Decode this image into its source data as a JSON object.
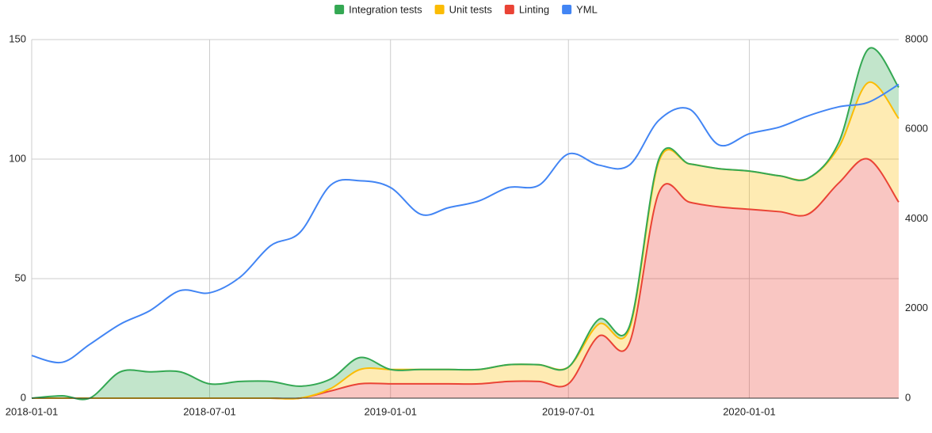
{
  "chart_data": {
    "type": "stacked-area-line",
    "x": [
      "2018-01-01",
      "2018-02-01",
      "2018-03-01",
      "2018-04-01",
      "2018-05-01",
      "2018-06-01",
      "2018-07-01",
      "2018-08-01",
      "2018-09-01",
      "2018-10-01",
      "2018-11-01",
      "2018-12-01",
      "2019-01-01",
      "2019-02-01",
      "2019-03-01",
      "2019-04-01",
      "2019-05-01",
      "2019-06-01",
      "2019-07-01",
      "2019-08-01",
      "2019-09-01",
      "2019-10-01",
      "2019-11-01",
      "2019-12-01",
      "2020-01-01",
      "2020-02-01",
      "2020-03-01",
      "2020-04-01",
      "2020-05-01",
      "2020-06-01"
    ],
    "xlim": [
      "2018-01-01",
      "2020-06-01"
    ],
    "xticks": [
      "2018-01-01",
      "2018-07-01",
      "2019-01-01",
      "2019-07-01",
      "2020-01-01"
    ],
    "ylim": [
      0,
      150
    ],
    "yticks": [
      0,
      50,
      100,
      150
    ],
    "y2lim": [
      0,
      8000
    ],
    "y2ticks": [
      0,
      2000,
      4000,
      6000,
      8000
    ],
    "grid": true,
    "legend": "top",
    "series": [
      {
        "name": "Integration tests",
        "color": "#34a853",
        "stacked": true,
        "values": [
          0,
          1,
          0,
          11,
          11,
          11,
          6,
          7,
          7,
          5,
          4,
          5,
          0,
          0,
          0,
          0,
          0,
          0,
          0,
          2,
          1,
          1,
          0,
          0,
          0,
          0,
          0,
          2,
          14,
          13
        ]
      },
      {
        "name": "Unit tests",
        "color": "#fbbc04",
        "stacked": true,
        "values": [
          0,
          0,
          0,
          0,
          0,
          0,
          0,
          0,
          0,
          0,
          1,
          6,
          6,
          6,
          6,
          6,
          7,
          7,
          7,
          5,
          6,
          13,
          16,
          16,
          16,
          15,
          15,
          15,
          32,
          35
        ]
      },
      {
        "name": "Linting",
        "color": "#ea4335",
        "stacked": true,
        "values": [
          0,
          0,
          0,
          0,
          0,
          0,
          0,
          0,
          0,
          0,
          3,
          6,
          6,
          6,
          6,
          6,
          7,
          7,
          6,
          26,
          23,
          86,
          82,
          80,
          79,
          78,
          77,
          90,
          100,
          82
        ]
      },
      {
        "name": "YML",
        "color": "#4285f4",
        "axis": "y2",
        "values": [
          950,
          800,
          1200,
          1650,
          1950,
          2400,
          2350,
          2700,
          3400,
          3700,
          4750,
          4850,
          4700,
          4100,
          4250,
          4400,
          4700,
          4750,
          5450,
          5200,
          5200,
          6200,
          6450,
          5650,
          5900,
          6050,
          6300,
          6500,
          6600,
          7000
        ]
      }
    ]
  }
}
